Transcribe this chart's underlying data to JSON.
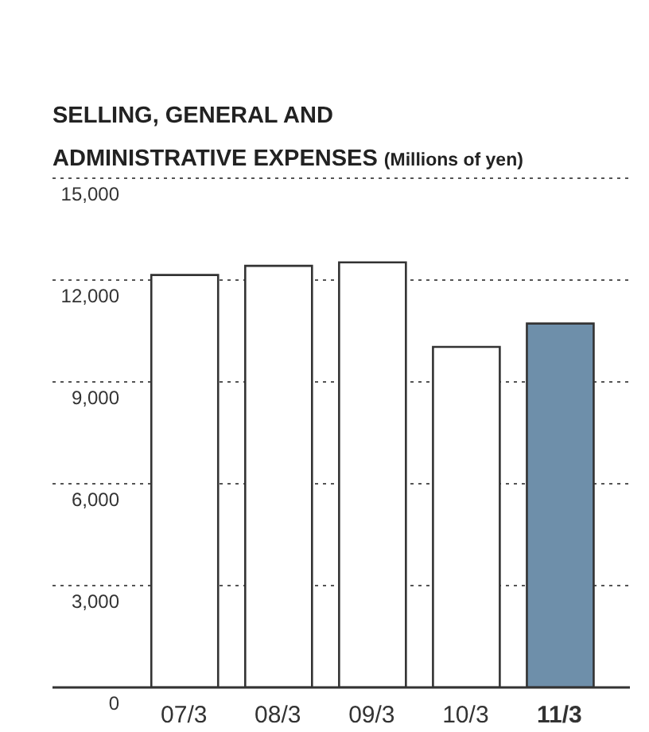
{
  "chart_data": {
    "type": "bar",
    "title": "SELLING, GENERAL AND ADMINISTRATIVE EXPENSES",
    "subtitle": "(Millions of yen)",
    "categories": [
      "07/3",
      "08/3",
      "09/3",
      "10/3",
      "11/3"
    ],
    "values": [
      12150,
      12420,
      12520,
      10030,
      10720
    ],
    "colors": [
      "#ffffff",
      "#ffffff",
      "#ffffff",
      "#ffffff",
      "#6e8faa"
    ],
    "ylim": [
      0,
      15000
    ],
    "yticks": [
      {
        "value": 0,
        "label": "0"
      },
      {
        "value": 3000,
        "label": "3,000"
      },
      {
        "value": 6000,
        "label": "6,000"
      },
      {
        "value": 9000,
        "label": "9,000"
      },
      {
        "value": 12000,
        "label": "12,000"
      },
      {
        "value": 15000,
        "label": "15,000"
      }
    ],
    "grid": "y",
    "legend": false
  }
}
